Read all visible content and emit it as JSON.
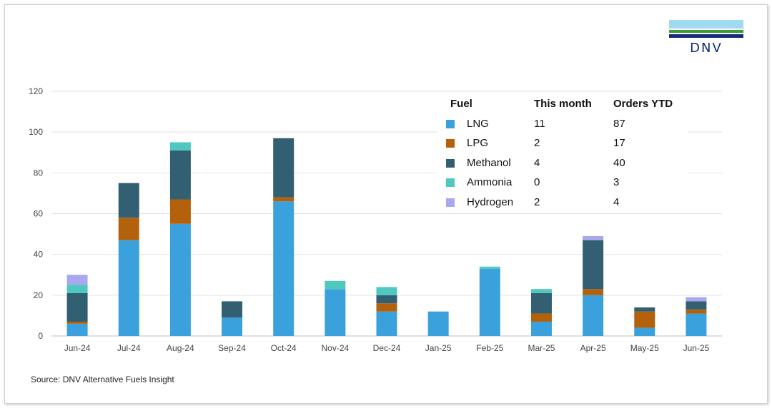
{
  "logo": {
    "text": "DNV",
    "colors": [
      "#9fdaf0",
      "#3f9c35",
      "#0f2c78"
    ]
  },
  "source": "Source: DNV Alternative Fuels Insight",
  "legend": {
    "headers": [
      "Fuel",
      "This month",
      "Orders YTD"
    ],
    "rows": [
      {
        "fuel": "LNG",
        "this_month": "11",
        "orders_ytd": "87",
        "color": "#3aa1dd"
      },
      {
        "fuel": "LPG",
        "this_month": "2",
        "orders_ytd": "17",
        "color": "#b4610c"
      },
      {
        "fuel": "Methanol",
        "this_month": "4",
        "orders_ytd": "40",
        "color": "#325f72"
      },
      {
        "fuel": "Ammonia",
        "this_month": "0",
        "orders_ytd": "3",
        "color": "#4fc9c0"
      },
      {
        "fuel": "Hydrogen",
        "this_month": "2",
        "orders_ytd": "4",
        "color": "#a9a8ee"
      }
    ]
  },
  "chart_data": {
    "type": "bar",
    "stacked": true,
    "title": "",
    "xlabel": "",
    "ylabel": "",
    "ylim": [
      0,
      120
    ],
    "yticks": [
      0,
      20,
      40,
      60,
      80,
      100,
      120
    ],
    "grid": true,
    "legend_position": "top-right",
    "categories": [
      "Jun-24",
      "Jul-24",
      "Aug-24",
      "Sep-24",
      "Oct-24",
      "Nov-24",
      "Dec-24",
      "Jan-25",
      "Feb-25",
      "Mar-25",
      "Apr-25",
      "May-25",
      "Jun-25"
    ],
    "series": [
      {
        "name": "LNG",
        "color": "#3aa1dd",
        "values": [
          6,
          47,
          55,
          9,
          66,
          23,
          12,
          12,
          33,
          7,
          20,
          4,
          11
        ]
      },
      {
        "name": "LPG",
        "color": "#b4610c",
        "values": [
          1,
          11,
          12,
          0,
          2,
          0,
          4,
          0,
          0,
          4,
          3,
          8,
          2
        ]
      },
      {
        "name": "Methanol",
        "color": "#325f72",
        "values": [
          14,
          17,
          24,
          8,
          29,
          0,
          4,
          0,
          0,
          10,
          24,
          2,
          4
        ]
      },
      {
        "name": "Ammonia",
        "color": "#4fc9c0",
        "values": [
          4,
          0,
          4,
          0,
          0,
          4,
          4,
          0,
          1,
          2,
          0,
          0,
          0
        ]
      },
      {
        "name": "Hydrogen",
        "color": "#a9a8ee",
        "values": [
          5,
          0,
          0,
          0,
          0,
          0,
          0,
          0,
          0,
          0,
          2,
          0,
          2
        ]
      }
    ]
  }
}
